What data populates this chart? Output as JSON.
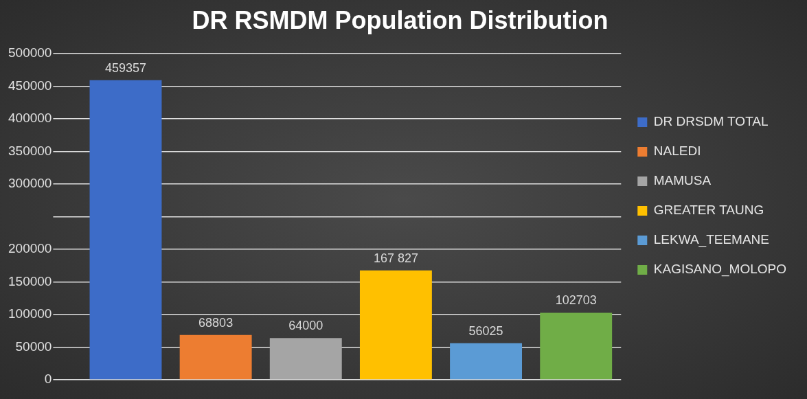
{
  "chart_data": {
    "type": "bar",
    "title": "DR RSMDM Population Distribution",
    "categories": [
      null,
      null,
      null,
      null,
      null,
      null
    ],
    "series": [
      {
        "name": "DR DRSDM TOTAL",
        "color": "#3d6cc8",
        "values": [
          459357,
          null,
          null,
          null,
          null,
          null
        ],
        "value_labels": [
          "459357",
          null,
          null,
          null,
          null,
          null
        ]
      },
      {
        "name": "NALEDI",
        "color": "#ed7d31",
        "values": [
          null,
          68803,
          null,
          null,
          null,
          null
        ],
        "value_labels": [
          null,
          "68803",
          null,
          null,
          null,
          null
        ]
      },
      {
        "name": "MAMUSA",
        "color": "#a5a5a5",
        "values": [
          null,
          null,
          64000,
          null,
          null,
          null
        ],
        "value_labels": [
          null,
          null,
          "64000",
          null,
          null,
          null
        ]
      },
      {
        "name": "GREATER TAUNG",
        "color": "#ffc000",
        "values": [
          null,
          null,
          null,
          167827,
          null,
          null
        ],
        "value_labels": [
          null,
          null,
          null,
          "167 827",
          null,
          null
        ]
      },
      {
        "name": "LEKWA_TEEMANE",
        "color": "#5b9bd5",
        "values": [
          null,
          null,
          null,
          null,
          56025,
          null
        ],
        "value_labels": [
          null,
          null,
          null,
          null,
          "56025",
          null
        ]
      },
      {
        "name": "KAGISANO_MOLOPO",
        "color": "#70ad47",
        "values": [
          null,
          null,
          null,
          null,
          null,
          102703
        ],
        "value_labels": [
          null,
          null,
          null,
          null,
          null,
          "102703"
        ]
      }
    ],
    "ylim": [
      0,
      500000
    ],
    "yticks": [
      0,
      50000,
      100000,
      150000,
      200000,
      {
        "value": 250000,
        "label": null
      },
      300000,
      350000,
      400000,
      450000,
      500000
    ],
    "grid": "y",
    "legend": "right"
  }
}
